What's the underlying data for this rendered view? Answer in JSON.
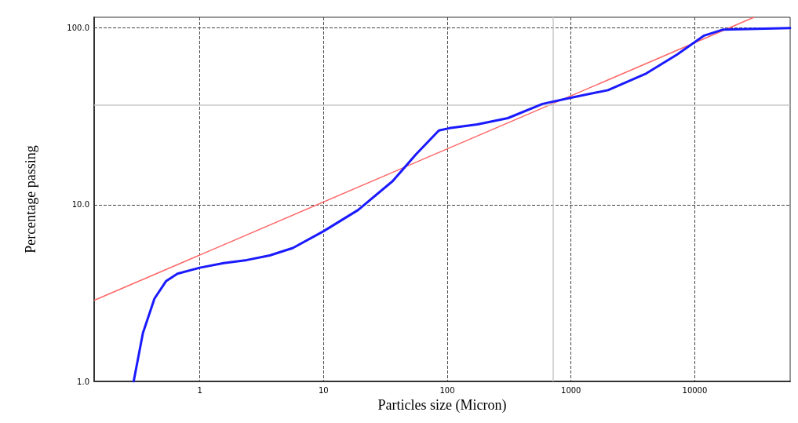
{
  "chart_data": {
    "type": "line",
    "xlabel": "Particles size (Micron)",
    "ylabel": "Percentage passing",
    "log": "xy",
    "grid": true,
    "line_style": "solid",
    "marker": "none",
    "xlim": [
      0.14,
      59000
    ],
    "ylim": [
      1,
      115
    ],
    "xticks": [
      1,
      10,
      100,
      1000,
      10000
    ],
    "yticks": [
      {
        "value": 1,
        "label": "1.0"
      },
      {
        "value": 10,
        "label": "10.0"
      },
      {
        "value": 100,
        "label": "100.0"
      }
    ],
    "series": [
      {
        "color": "#1a1aff",
        "x": [
          0.292,
          0.347,
          0.43,
          0.533,
          0.66,
          1,
          1.56,
          2.39,
          3.67,
          5.65,
          10,
          19,
          36.2,
          55.6,
          85.5,
          104,
          175,
          309,
          589,
          1000,
          1990,
          4060,
          7200,
          11900,
          17000,
          58900
        ],
        "values": [
          1.0,
          1.88,
          2.94,
          3.69,
          4.07,
          4.4,
          4.67,
          4.86,
          5.16,
          5.69,
          7.08,
          9.33,
          13.6,
          19.2,
          26.3,
          27.1,
          28.5,
          30.9,
          37.2,
          40.3,
          44.5,
          55.3,
          70.8,
          90.6,
          98,
          100
        ]
      },
      {
        "color": "#ff6666",
        "x": [
          0.141,
          30100
        ],
        "values": [
          2.88,
          115
        ]
      }
    ],
    "ref_lines": [
      {
        "axis": "x",
        "value": 710,
        "color": "#c8c8c8"
      },
      {
        "axis": "y",
        "value": 36.5,
        "color": "#c8c8c8"
      }
    ]
  }
}
